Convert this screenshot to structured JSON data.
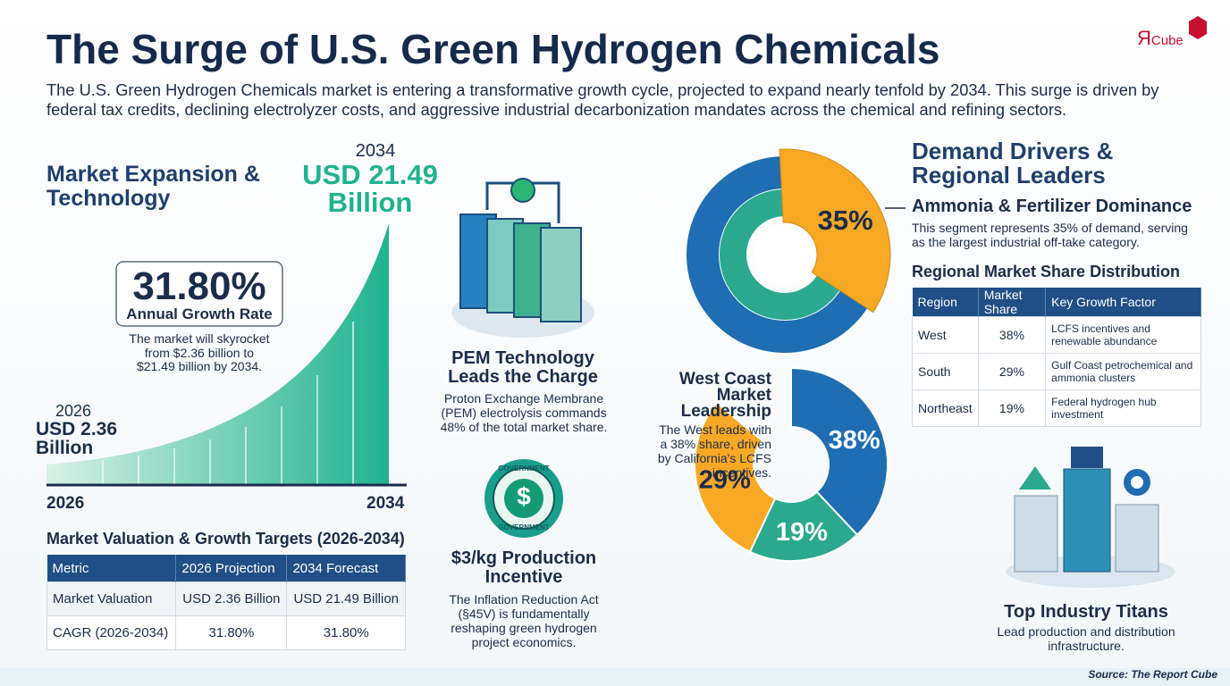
{
  "header": {
    "title": "The Surge of U.S. Green Hydrogen Chemicals",
    "subtitle": "The U.S. Green Hydrogen Chemicals market is entering a transformative growth cycle, projected to expand nearly tenfold by 2034. This surge is driven by federal tax credits, declining electrolyzer costs, and aggressive industrial decarbonization mandates across the chemical and refining sectors.",
    "logo_mark": "Я",
    "logo_text": "Cube"
  },
  "market": {
    "heading": "Market Expansion & Technology",
    "end_year": "2034",
    "end_value": "USD 21.49 Billion",
    "start_year": "2026",
    "start_value": "USD 2.36 Billion",
    "growth_rate": "31.80%",
    "growth_label": "Annual Growth Rate",
    "growth_note": "The market will skyrocket from $2.36 billion to $21.49 billion by 2034.",
    "axis_start": "2026",
    "axis_end": "2034"
  },
  "valuation_table": {
    "heading": "Market Valuation & Growth Targets (2026-2034)",
    "columns": [
      "Metric",
      "2026 Projection",
      "2034 Forecast"
    ],
    "rows": [
      [
        "Market Valuation",
        "USD 2.36 Billion",
        "USD 21.49 Billion"
      ],
      [
        "CAGR (2026-2034)",
        "31.80%",
        "31.80%"
      ]
    ]
  },
  "pem": {
    "title": "PEM Technology Leads the Charge",
    "text": "Proton Exchange Membrane (PEM) electrolysis commands 48% of the total market share."
  },
  "incentive": {
    "badge_top": "GOVERNMENT",
    "badge_symbol": "$",
    "badge_bottom": "GOVERNMENT",
    "title": "$3/kg Production Incentive",
    "text": "The Inflation Reduction Act (§45V) is fundamentally reshaping green hydrogen project economics."
  },
  "demand": {
    "heading": "Demand Drivers & Regional Leaders",
    "value": 35,
    "value_label": "35%",
    "color": "#f7a825",
    "sub_heading": "Ammonia & Fertilizer Dominance",
    "text": "This segment represents 35% of demand, serving as the largest industrial off-take category."
  },
  "regional_table": {
    "heading": "Regional Market Share Distribution",
    "columns": [
      "Region",
      "Market Share",
      "Key Growth Factor"
    ],
    "rows": [
      [
        "West",
        "38%",
        "LCFS incentives and renewable abundance"
      ],
      [
        "South",
        "29%",
        "Gulf Coast petrochemical and ammonia clusters"
      ],
      [
        "Northeast",
        "19%",
        "Federal hydrogen hub investment"
      ]
    ]
  },
  "west": {
    "title": "West Coast Market Leadership",
    "text": "The West leads with a 38% share, driven by California's LCFS incentives.",
    "values": [
      38,
      19,
      29
    ],
    "value_labels": [
      "38%",
      "19%",
      "29%"
    ],
    "colors": [
      "#1f6db3",
      "#2aa98f",
      "#f7a825"
    ]
  },
  "titans": {
    "title": "Top Industry Titans",
    "text": "Lead production and distribution infrastructure."
  },
  "source": "Source: The Report Cube"
}
